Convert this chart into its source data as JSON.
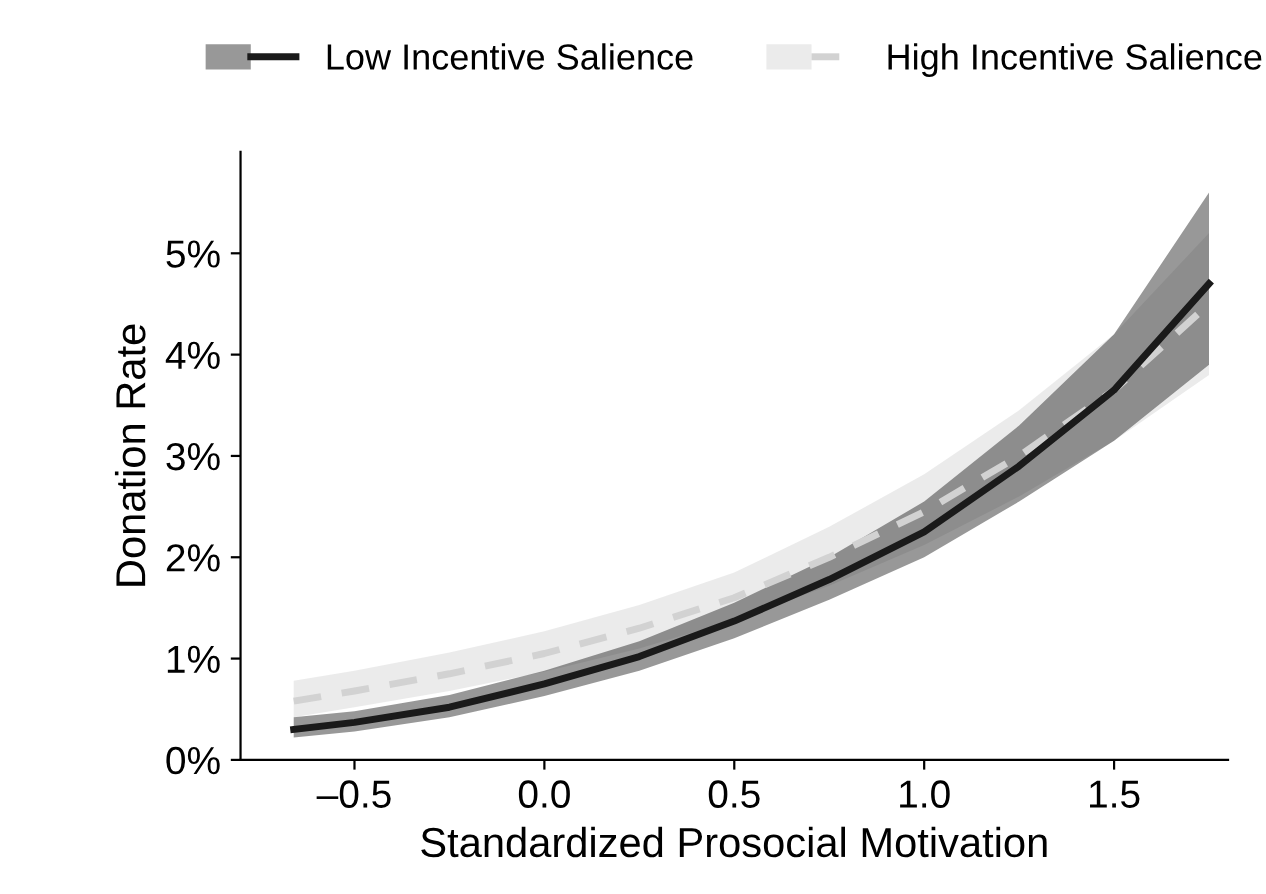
{
  "chart_data": {
    "type": "line",
    "xlabel": "Standardized Prosocial Motivation",
    "ylabel": "Donation Rate",
    "xlim": [
      -0.8,
      1.8
    ],
    "ylim": [
      0,
      6
    ],
    "xticks": [
      {
        "value": -0.5,
        "label": "–0.5"
      },
      {
        "value": 0,
        "label": "0.0"
      },
      {
        "value": 0.5,
        "label": "0.5"
      },
      {
        "value": 1,
        "label": "1.0"
      },
      {
        "value": 1.5,
        "label": "1.5"
      }
    ],
    "yticks": [
      {
        "value": 0,
        "label": "0%"
      },
      {
        "value": 1,
        "label": "1%"
      },
      {
        "value": 2,
        "label": "2%"
      },
      {
        "value": 3,
        "label": "3%"
      },
      {
        "value": 4,
        "label": "4%"
      },
      {
        "value": 5,
        "label": "5%"
      }
    ],
    "x": [
      -0.66,
      -0.5,
      -0.25,
      0,
      0.25,
      0.5,
      0.75,
      1.0,
      1.25,
      1.5,
      1.75
    ],
    "legend": "top",
    "grid": false,
    "series": [
      {
        "name": "High Incentive Salience",
        "color": "#d2d2d2",
        "line_style": "dashed",
        "values": [
          0.58,
          0.68,
          0.85,
          1.05,
          1.3,
          1.6,
          2.0,
          2.45,
          3.0,
          3.65,
          4.5
        ],
        "lower": [
          0.42,
          0.52,
          0.68,
          0.87,
          1.1,
          1.38,
          1.72,
          2.12,
          2.6,
          3.15,
          3.8
        ],
        "upper": [
          0.78,
          0.88,
          1.06,
          1.27,
          1.53,
          1.85,
          2.3,
          2.82,
          3.45,
          4.2,
          5.2
        ]
      },
      {
        "name": "Low Incentive Salience",
        "color": "#1a1a1a",
        "line_style": "solid",
        "values": [
          0.3,
          0.37,
          0.52,
          0.75,
          1.02,
          1.37,
          1.78,
          2.25,
          2.9,
          3.65,
          4.7
        ],
        "lower": [
          0.22,
          0.28,
          0.42,
          0.63,
          0.88,
          1.2,
          1.58,
          2.0,
          2.55,
          3.15,
          3.9
        ],
        "upper": [
          0.42,
          0.48,
          0.64,
          0.88,
          1.17,
          1.55,
          2.0,
          2.55,
          3.3,
          4.2,
          5.6
        ]
      }
    ]
  }
}
